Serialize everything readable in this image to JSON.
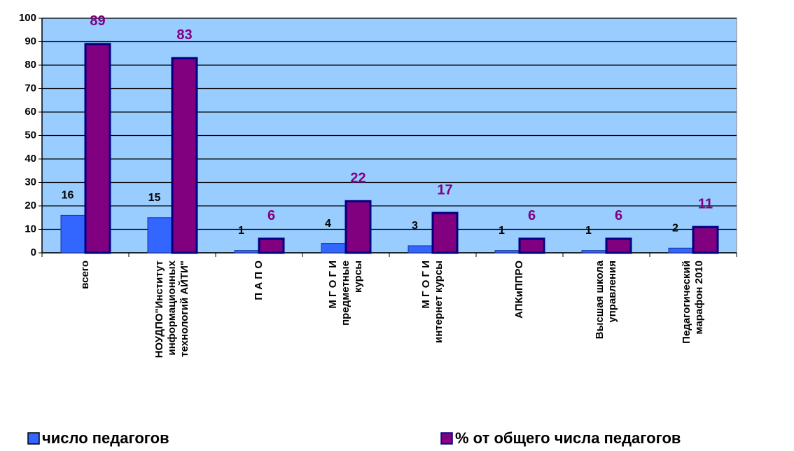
{
  "chart_data": {
    "type": "bar",
    "categories": [
      "всего",
      "НОУДПО\"Институт\nинформационных\nтехнологий АЙТИ\"",
      "П А П О",
      "М Г О Г И\nпредметные\nкурсы",
      "М Г О Г И\nинтернет курсы",
      "АПКиППРО",
      "Высшая школа\nуправления",
      "Педагогический\nмарафон 2010"
    ],
    "series": [
      {
        "name": "число педагогов",
        "color": "#3366ff",
        "values": [
          16,
          15,
          1,
          4,
          3,
          1,
          1,
          2
        ]
      },
      {
        "name": "% от общего числа педагогов",
        "color": "#800080",
        "values": [
          89,
          83,
          6,
          22,
          17,
          6,
          6,
          11
        ]
      }
    ],
    "ylim": [
      0,
      100
    ],
    "yticks": [
      0,
      10,
      20,
      30,
      40,
      50,
      60,
      70,
      80,
      90,
      100
    ],
    "grid": true
  }
}
